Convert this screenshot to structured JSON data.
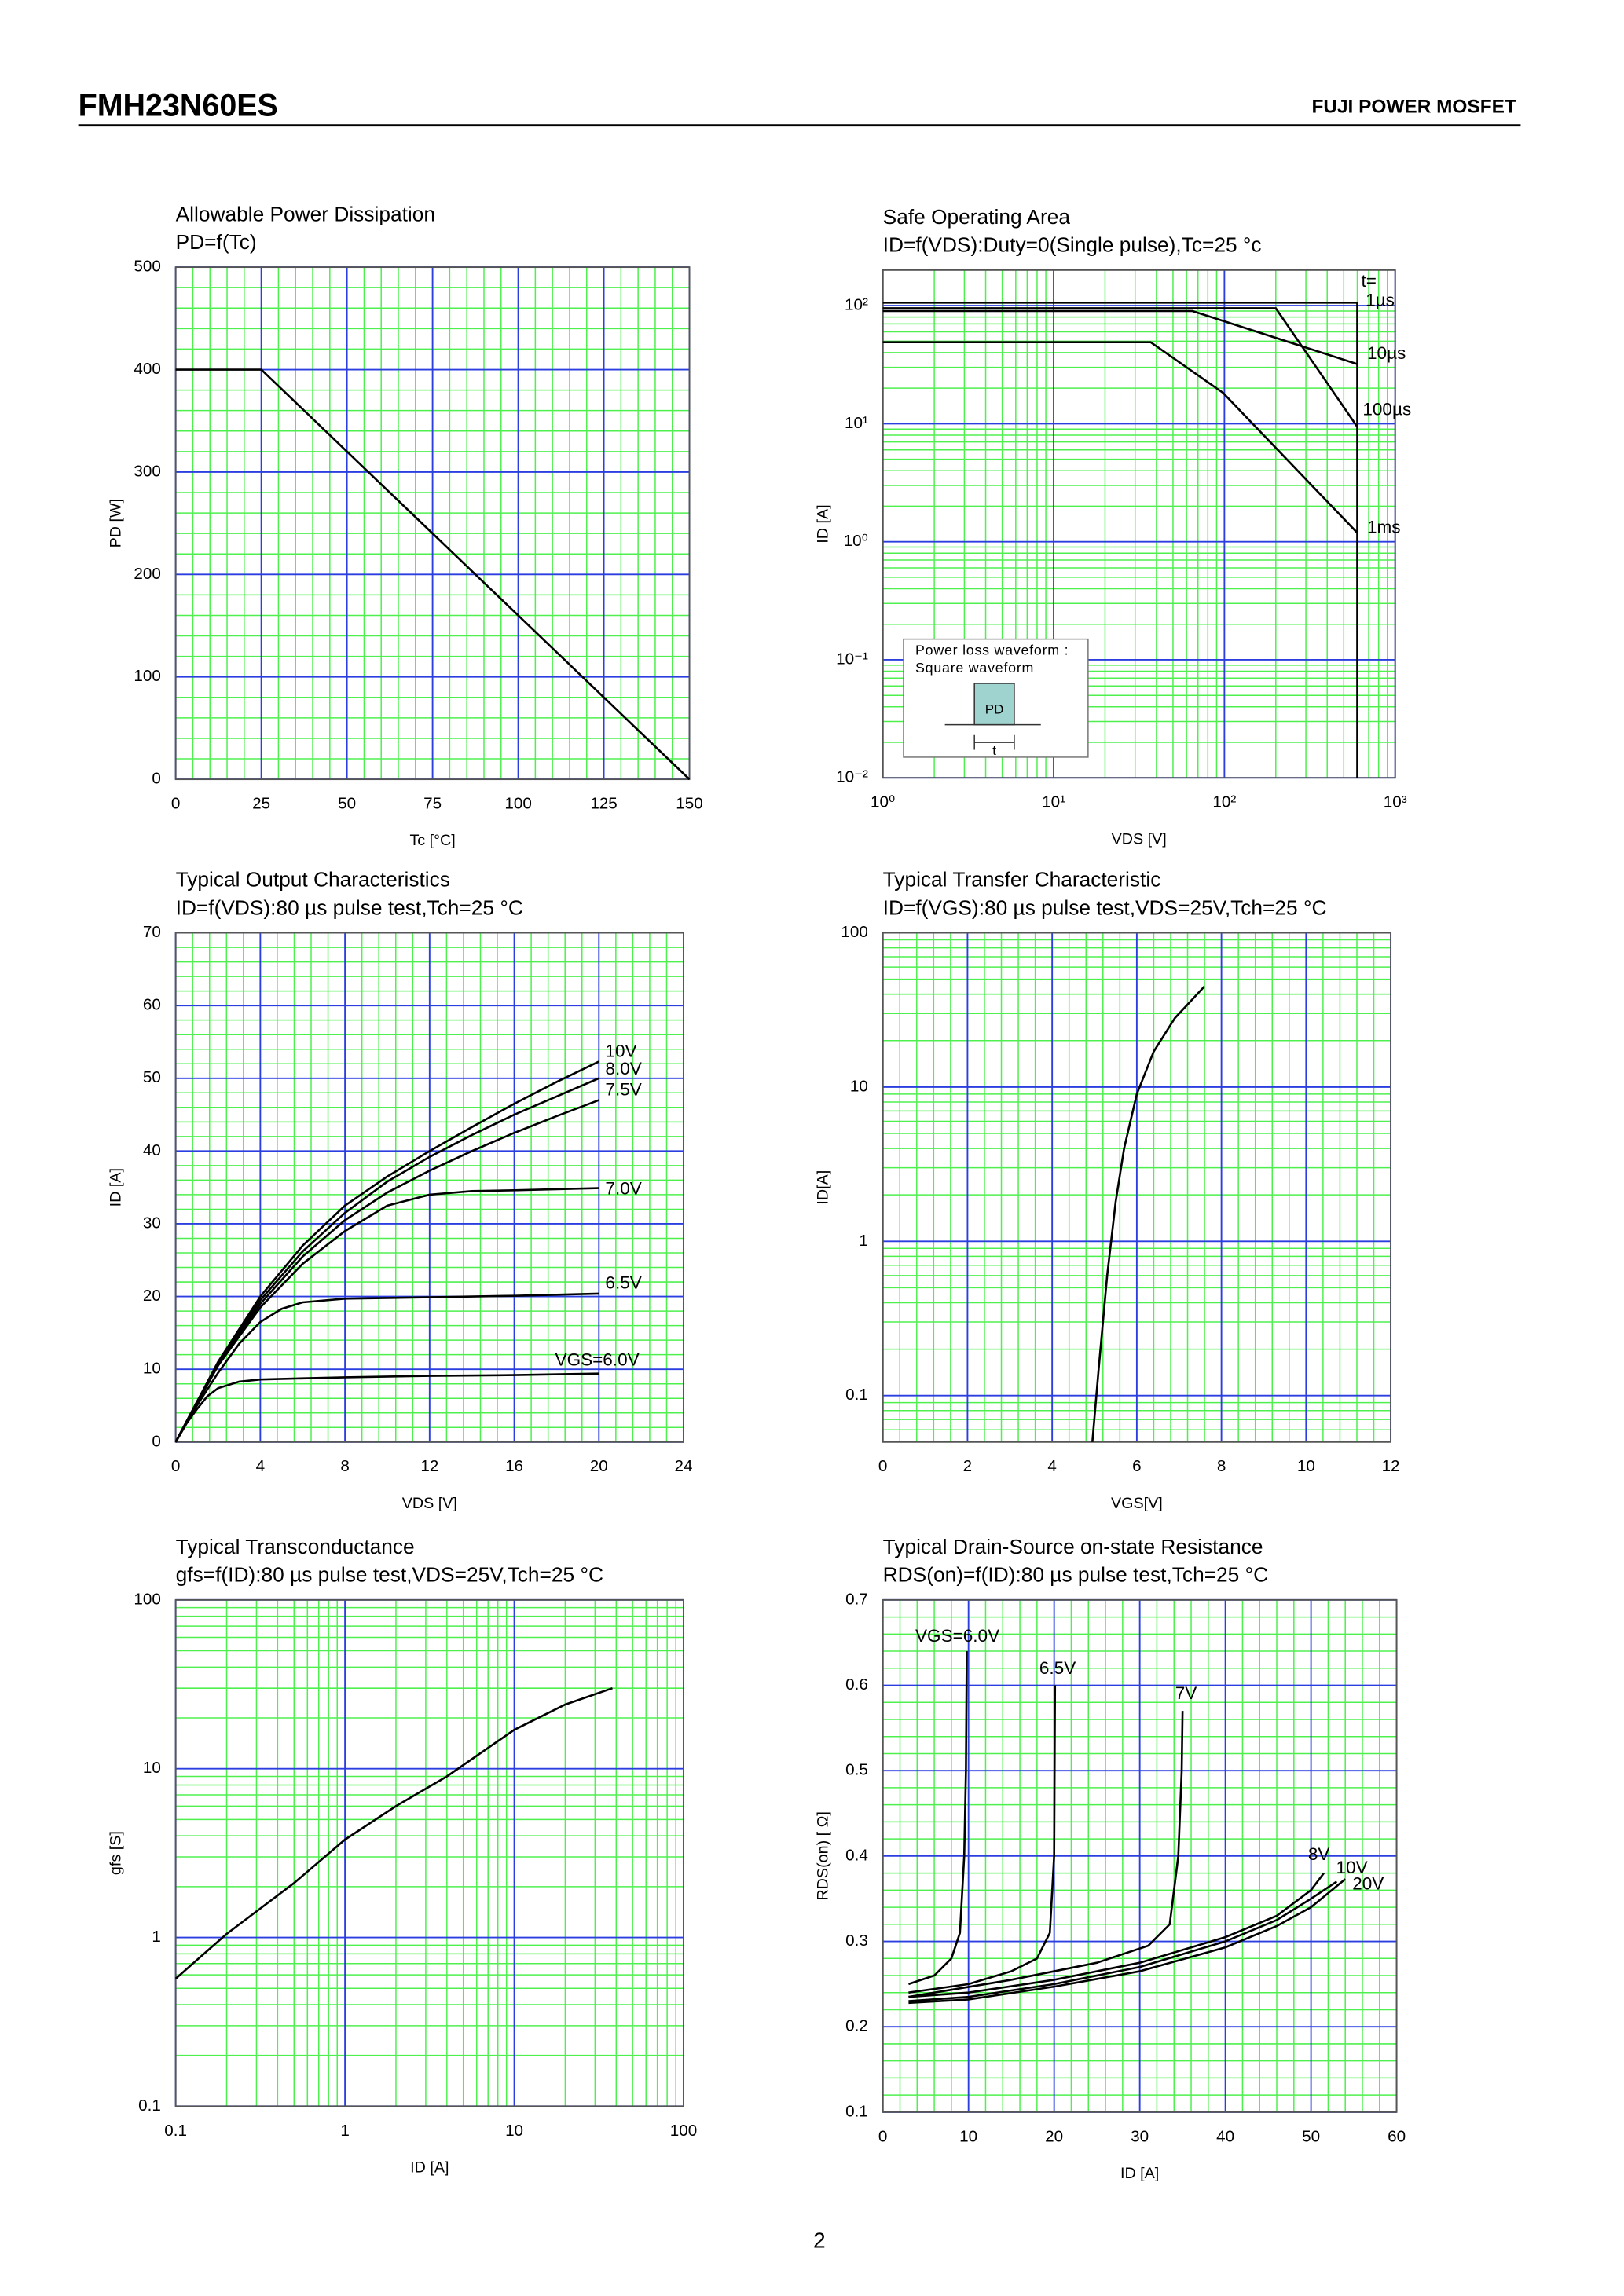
{
  "header": {
    "part": "FMH23N60ES",
    "brand": "FUJI POWER MOSFET"
  },
  "page_number": "2",
  "chart_data": [
    {
      "type": "line",
      "title": "Allowable Power Dissipation",
      "subtitle": "PD=f(Tc)",
      "x_label": "Tc [°C]",
      "y_label": "PD [W]",
      "xlim": [
        0,
        150
      ],
      "ylim": [
        0,
        500
      ],
      "xticks": [
        0,
        25,
        50,
        75,
        100,
        125,
        150
      ],
      "yticks": [
        0,
        100,
        200,
        300,
        400,
        500
      ],
      "grid": true,
      "minor_divisions": 5,
      "grid_color": "#2b3fe0",
      "minor_grid_color": "#4ef04e",
      "series": [
        {
          "color": "#000000",
          "x": [
            0,
            25,
            150
          ],
          "values": [
            400,
            400,
            0
          ]
        }
      ]
    },
    {
      "type": "line",
      "title": "Safe Operating Area",
      "subtitle": "ID=f(VDS):Duty=0(Single pulse),Tc=25 °c",
      "x_label": "VDS [V]",
      "y_label": "ID [A]",
      "xlog": true,
      "ylog": true,
      "xlim": [
        1,
        1000
      ],
      "ylim": [
        0.01,
        200
      ],
      "xticks": [
        {
          "value": 1,
          "label": "10⁰"
        },
        {
          "value": 10,
          "label": "10¹"
        },
        {
          "value": 100,
          "label": "10²"
        },
        {
          "value": 1000,
          "label": "10³"
        }
      ],
      "yticks": [
        {
          "value": 0.01,
          "label": "10⁻²"
        },
        {
          "value": 0.1,
          "label": "10⁻¹"
        },
        {
          "value": 1,
          "label": "10⁰"
        },
        {
          "value": 10,
          "label": "10¹"
        },
        {
          "value": 100,
          "label": "10²"
        }
      ],
      "grid": true,
      "grid_color": "#2b3fe0",
      "minor_grid_color": "#4ef04e",
      "legend_title": "t=",
      "series": [
        {
          "name": "1µs",
          "color": "#000000",
          "x": [
            1,
            600,
            600
          ],
          "values": [
            106,
            106,
            0.01
          ]
        },
        {
          "name": "10µs",
          "color": "#000000",
          "x": [
            1,
            65,
            600
          ],
          "values": [
            90,
            90,
            32
          ]
        },
        {
          "name": "100µs",
          "color": "#000000",
          "x": [
            1,
            200,
            600
          ],
          "values": [
            95,
            95,
            9.4
          ]
        },
        {
          "name": "1ms",
          "color": "#000000",
          "x": [
            1,
            37,
            98,
            600
          ],
          "values": [
            49,
            49,
            18.3,
            1.19
          ]
        }
      ],
      "inset": {
        "lines": [
          "Power loss waveform :",
          "Square waveform"
        ],
        "pulse_label": "PD",
        "width_label": "t"
      }
    },
    {
      "type": "line",
      "title": "Typical Output Characteristics",
      "subtitle": "ID=f(VDS):80 µs pulse test,Tch=25 °C",
      "x_label": "VDS [V]",
      "y_label": "ID [A]",
      "xlim": [
        0,
        24
      ],
      "ylim": [
        0,
        70
      ],
      "xticks": [
        0,
        4,
        8,
        12,
        16,
        20,
        24
      ],
      "yticks": [
        0,
        10,
        20,
        30,
        40,
        50,
        60,
        70
      ],
      "grid": true,
      "minor_divisions": 5,
      "grid_color": "#2b3fe0",
      "minor_grid_color": "#4ef04e",
      "series": [
        {
          "name": "10V",
          "color": "#000000",
          "x": [
            0,
            2,
            4,
            6,
            8,
            10,
            12,
            14,
            16,
            18,
            20
          ],
          "values": [
            0,
            11,
            20,
            27,
            32.5,
            36.5,
            40,
            43.3,
            46.5,
            49.5,
            52.3
          ]
        },
        {
          "name": "8.0V",
          "color": "#000000",
          "x": [
            0,
            2,
            4,
            6,
            8,
            10,
            12,
            14,
            16,
            18,
            20
          ],
          "values": [
            0,
            10.8,
            19.5,
            26.2,
            31.5,
            35.8,
            39.2,
            42.2,
            45,
            47.5,
            50
          ]
        },
        {
          "name": "7.5V",
          "color": "#000000",
          "x": [
            0,
            2,
            4,
            6,
            8,
            10,
            12,
            14,
            16,
            18,
            20
          ],
          "values": [
            0,
            10.5,
            19,
            25.5,
            30.5,
            34.3,
            37.3,
            40,
            42.5,
            44.8,
            47
          ]
        },
        {
          "name": "7.0V",
          "color": "#000000",
          "x": [
            0,
            1,
            2,
            4,
            6,
            8,
            10,
            12,
            14,
            16,
            20
          ],
          "values": [
            0,
            5.5,
            10.5,
            18.5,
            24.5,
            29,
            32.5,
            34,
            34.5,
            34.6,
            34.9
          ]
        },
        {
          "name": "6.5V",
          "color": "#000000",
          "x": [
            0,
            1,
            2,
            3,
            4,
            5,
            6,
            8,
            12,
            16,
            20
          ],
          "values": [
            0,
            5,
            9.5,
            13.5,
            16.5,
            18.3,
            19.2,
            19.7,
            19.9,
            20.1,
            20.4
          ]
        },
        {
          "name": "VGS=6.0V",
          "color": "#000000",
          "x": [
            0,
            0.5,
            1,
            1.5,
            2,
            3,
            4,
            8,
            12,
            16,
            20
          ],
          "values": [
            0,
            2.5,
            4.5,
            6.3,
            7.4,
            8.3,
            8.6,
            8.9,
            9.1,
            9.2,
            9.4
          ]
        }
      ]
    },
    {
      "type": "line",
      "title": "Typical Transfer Characteristic",
      "subtitle": "ID=f(VGS):80 µs pulse test,VDS=25V,Tch=25 °C",
      "x_label": "VGS[V]",
      "y_label": "ID[A]",
      "ylog": true,
      "xlim": [
        0,
        12
      ],
      "ylim": [
        0.05,
        100
      ],
      "xticks": [
        0,
        2,
        4,
        6,
        8,
        10,
        12
      ],
      "yticks": [
        0.1,
        1,
        10,
        100
      ],
      "grid": true,
      "minor_divisions": 5,
      "grid_color": "#2b3fe0",
      "minor_grid_color": "#4ef04e",
      "series": [
        {
          "color": "#000000",
          "x": [
            4.95,
            5.1,
            5.3,
            5.5,
            5.7,
            6,
            6.4,
            6.9,
            7.6
          ],
          "values": [
            0.05,
            0.15,
            0.6,
            1.8,
            4,
            9,
            17,
            28,
            45
          ]
        }
      ]
    },
    {
      "type": "line",
      "title": "Typical Transconductance",
      "subtitle": "gfs=f(ID):80 µs pulse test,VDS=25V,Tch=25  °C",
      "x_label": "ID [A]",
      "y_label": "gfs [S]",
      "xlog": true,
      "ylog": true,
      "xlim": [
        0.1,
        100
      ],
      "ylim": [
        0.1,
        100
      ],
      "xticks": [
        0.1,
        1,
        10,
        100
      ],
      "yticks": [
        0.1,
        1,
        10,
        100
      ],
      "grid": true,
      "grid_color": "#2b3fe0",
      "minor_grid_color": "#4ef04e",
      "series": [
        {
          "color": "#000000",
          "x": [
            0.1,
            0.2,
            0.5,
            1,
            2,
            4,
            10,
            20,
            38
          ],
          "values": [
            0.57,
            1.05,
            2.1,
            3.8,
            6,
            9,
            17,
            24,
            30
          ]
        }
      ]
    },
    {
      "type": "line",
      "title": "Typical Drain-Source on-state Resistance",
      "subtitle": "RDS(on)=f(ID):80  µs pulse test,Tch=25  °C",
      "x_label": "ID [A]",
      "y_label": "RDS(on) [ Ω]",
      "xlim": [
        0,
        60
      ],
      "ylim": [
        0.1,
        0.7
      ],
      "xticks": [
        0,
        10,
        20,
        30,
        40,
        50,
        60
      ],
      "yticks": [
        0.1,
        0.2,
        0.3,
        0.4,
        0.5,
        0.6,
        0.7
      ],
      "grid": true,
      "minor_divisions": 5,
      "grid_color": "#2b3fe0",
      "minor_grid_color": "#4ef04e",
      "series": [
        {
          "name": "VGS=6.0V",
          "color": "#000000",
          "x": [
            3,
            6,
            8,
            9,
            9.5,
            9.7,
            9.8
          ],
          "values": [
            0.25,
            0.26,
            0.28,
            0.31,
            0.4,
            0.5,
            0.64
          ]
        },
        {
          "name": "6.5V",
          "color": "#000000",
          "x": [
            3,
            10,
            15,
            18,
            19.5,
            20,
            20.1
          ],
          "values": [
            0.24,
            0.25,
            0.265,
            0.28,
            0.31,
            0.4,
            0.6
          ]
        },
        {
          "name": "7V",
          "color": "#000000",
          "x": [
            3,
            15,
            25,
            31,
            33.5,
            34.5,
            34.9,
            35
          ],
          "values": [
            0.235,
            0.255,
            0.275,
            0.295,
            0.32,
            0.4,
            0.5,
            0.57
          ]
        },
        {
          "name": "8V",
          "color": "#000000",
          "x": [
            3,
            10,
            20,
            30,
            40,
            46,
            50,
            51.5
          ],
          "values": [
            0.235,
            0.24,
            0.255,
            0.275,
            0.305,
            0.33,
            0.36,
            0.38
          ]
        },
        {
          "name": "10V",
          "color": "#000000",
          "x": [
            3,
            10,
            20,
            30,
            40,
            46,
            50,
            53
          ],
          "values": [
            0.23,
            0.235,
            0.25,
            0.27,
            0.3,
            0.325,
            0.35,
            0.37
          ]
        },
        {
          "name": "20V",
          "color": "#000000",
          "x": [
            3,
            10,
            20,
            30,
            40,
            46,
            50,
            54
          ],
          "values": [
            0.228,
            0.232,
            0.247,
            0.265,
            0.293,
            0.318,
            0.34,
            0.373
          ]
        }
      ]
    }
  ]
}
